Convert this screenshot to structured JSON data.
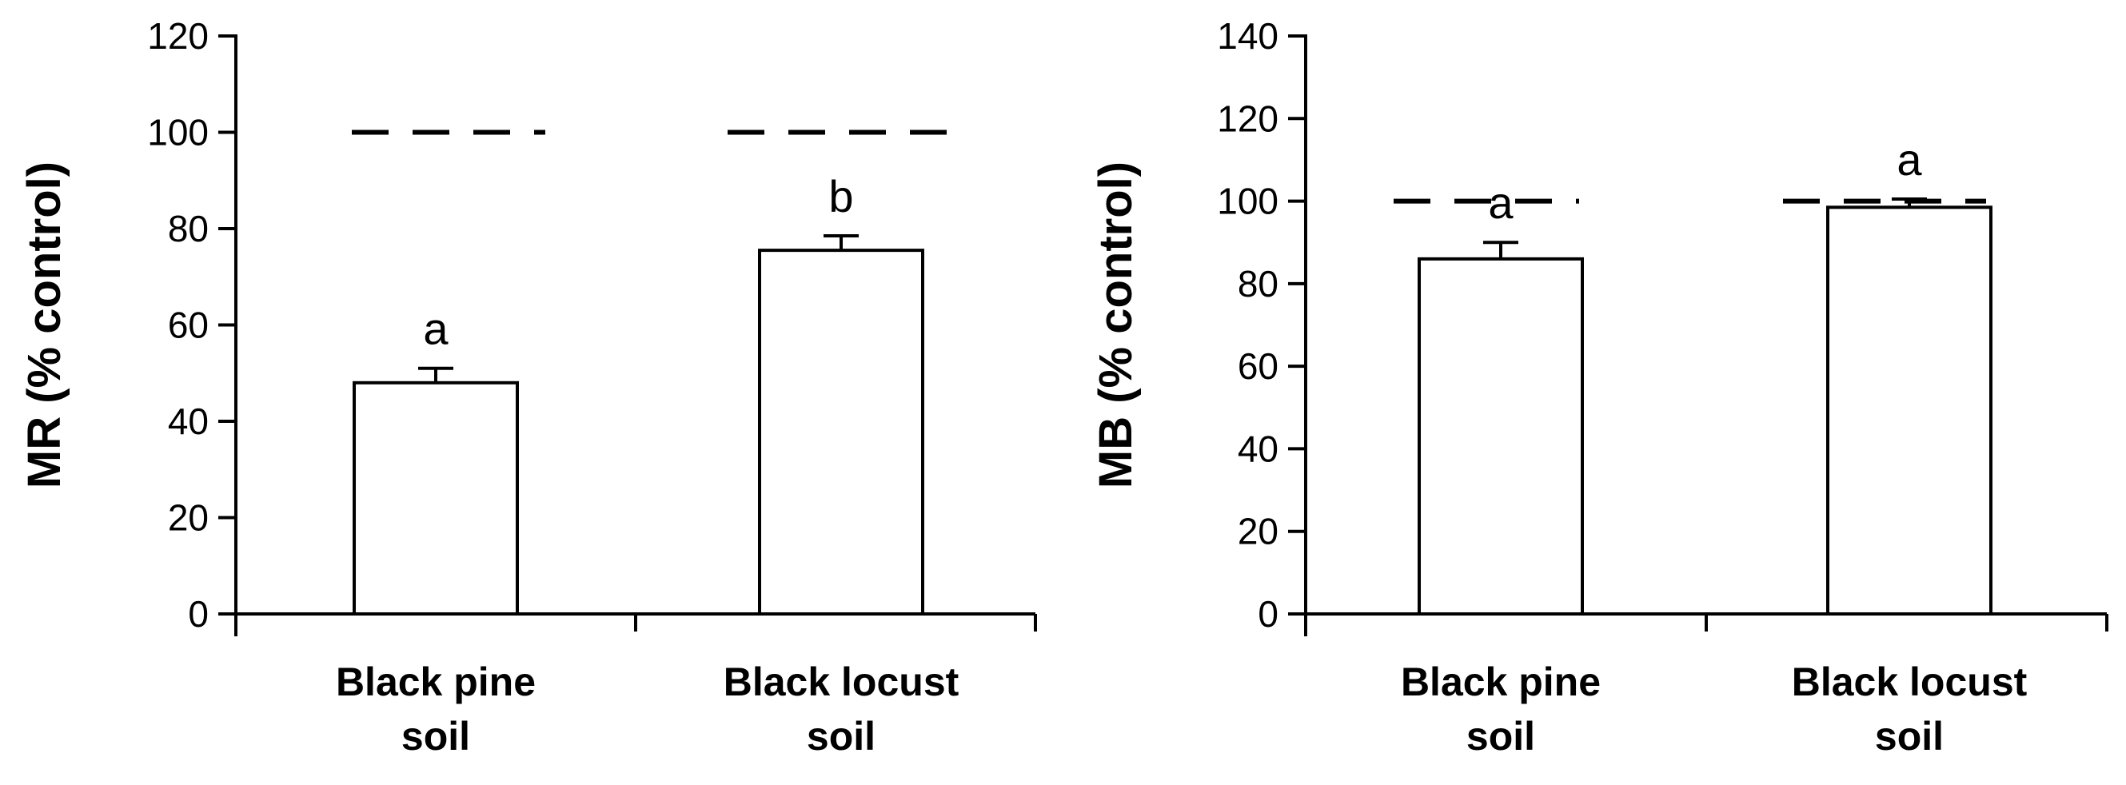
{
  "chart_data": [
    {
      "type": "bar",
      "categories": [
        [
          "Black pine",
          "soil"
        ],
        [
          "Black locust",
          "soil"
        ]
      ],
      "values": [
        48,
        75.5
      ],
      "errors": [
        3,
        3
      ],
      "significance": [
        "a",
        "b"
      ],
      "reference_line": 100,
      "ylabel": "MR (% control)",
      "ylim": [
        0,
        120
      ],
      "yticks": [
        0,
        20,
        40,
        60,
        80,
        100,
        120
      ],
      "grid": false
    },
    {
      "type": "bar",
      "categories": [
        [
          "Black pine",
          "soil"
        ],
        [
          "Black locust",
          "soil"
        ]
      ],
      "values": [
        86,
        98.5
      ],
      "errors": [
        4,
        2
      ],
      "significance": [
        "a",
        "a"
      ],
      "reference_line": 100,
      "ylabel": "MB (% control)",
      "ylim": [
        0,
        140
      ],
      "yticks": [
        0,
        20,
        40,
        60,
        80,
        100,
        120,
        140
      ],
      "grid": false
    }
  ],
  "colors": {
    "bar_fill": "#ffffff",
    "stroke": "#000000",
    "background": "#ffffff"
  }
}
